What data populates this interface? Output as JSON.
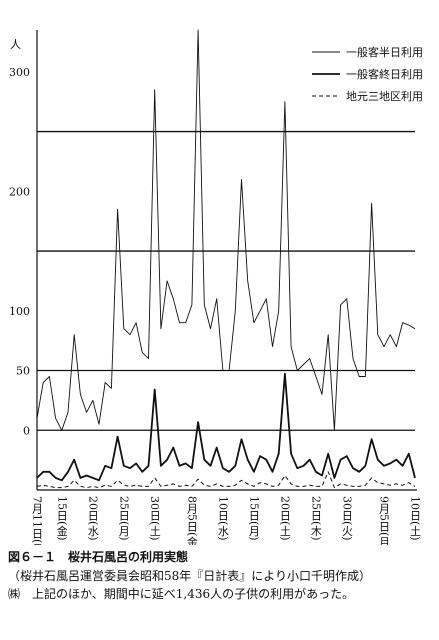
{
  "chart_data": {
    "type": "line",
    "title": "図６－１　桜井石風呂の利用実態",
    "subtitle": "（桜井石風呂運営委員会昭和58年『日計表』により小口千明作成）",
    "note": "㈱　上記のほか、期間中に延べ1,436人の子供の利用があった。",
    "y_label": "人",
    "categories": [
      "7月11日(月)",
      null,
      null,
      null,
      "15日(金)",
      null,
      null,
      null,
      null,
      "20日(水)",
      null,
      null,
      null,
      null,
      "25日(月)",
      null,
      null,
      null,
      null,
      "30日(土)",
      null,
      null,
      null,
      null,
      null,
      "8月5日(金)",
      null,
      null,
      null,
      null,
      "10日(水)",
      null,
      null,
      null,
      null,
      "15日(月)",
      null,
      null,
      null,
      null,
      "20日(土)",
      null,
      null,
      null,
      null,
      "25日(木)",
      null,
      null,
      null,
      null,
      "30日(火)",
      null,
      null,
      null,
      null,
      null,
      "9月5日(月)",
      null,
      null,
      null,
      null,
      "10日(土)"
    ],
    "series": [
      {
        "name": "一般客半日利用",
        "color": "#111111",
        "style": "thin",
        "values": [
          10,
          40,
          45,
          10,
          0,
          15,
          80,
          30,
          15,
          25,
          5,
          40,
          35,
          185,
          85,
          80,
          90,
          65,
          60,
          285,
          85,
          125,
          110,
          90,
          90,
          105,
          335,
          105,
          85,
          110,
          50,
          50,
          100,
          210,
          125,
          90,
          100,
          110,
          70,
          100,
          275,
          70,
          50,
          55,
          60,
          45,
          30,
          80,
          0,
          105,
          110,
          60,
          45,
          45,
          190,
          80,
          70,
          80,
          70,
          90,
          88,
          85
        ]
      },
      {
        "name": "一般客終日利用",
        "color": "#111111",
        "style": "thick",
        "axis": "y2",
        "values": [
          10,
          15,
          15,
          10,
          8,
          15,
          25,
          10,
          12,
          10,
          8,
          20,
          18,
          44,
          20,
          18,
          22,
          15,
          20,
          83,
          20,
          25,
          35,
          20,
          22,
          18,
          56,
          25,
          20,
          35,
          18,
          15,
          20,
          42,
          25,
          15,
          28,
          25,
          15,
          30,
          96,
          30,
          18,
          20,
          25,
          15,
          12,
          30,
          10,
          25,
          28,
          18,
          15,
          20,
          42,
          25,
          20,
          22,
          25,
          20,
          30,
          10
        ]
      },
      {
        "name": "地元三地区利用",
        "color": "#111111",
        "style": "dashed",
        "axis": "y2",
        "values": [
          3,
          4,
          3,
          2,
          2,
          3,
          8,
          3,
          2,
          3,
          2,
          4,
          3,
          8,
          4,
          3,
          4,
          3,
          3,
          10,
          3,
          4,
          5,
          3,
          4,
          3,
          9,
          4,
          3,
          5,
          3,
          3,
          4,
          8,
          5,
          3,
          6,
          5,
          3,
          4,
          12,
          5,
          3,
          3,
          4,
          3,
          3,
          15,
          2,
          5,
          4,
          3,
          3,
          4,
          10,
          6,
          5,
          4,
          5,
          4,
          6,
          3
        ]
      }
    ],
    "ylim": [
      -50,
      335
    ],
    "yticks": [
      0,
      50,
      100,
      200,
      300
    ],
    "gridlines": [
      0,
      50,
      150,
      250
    ],
    "y2lim": [
      0,
      380
    ],
    "legend": "top-right"
  }
}
